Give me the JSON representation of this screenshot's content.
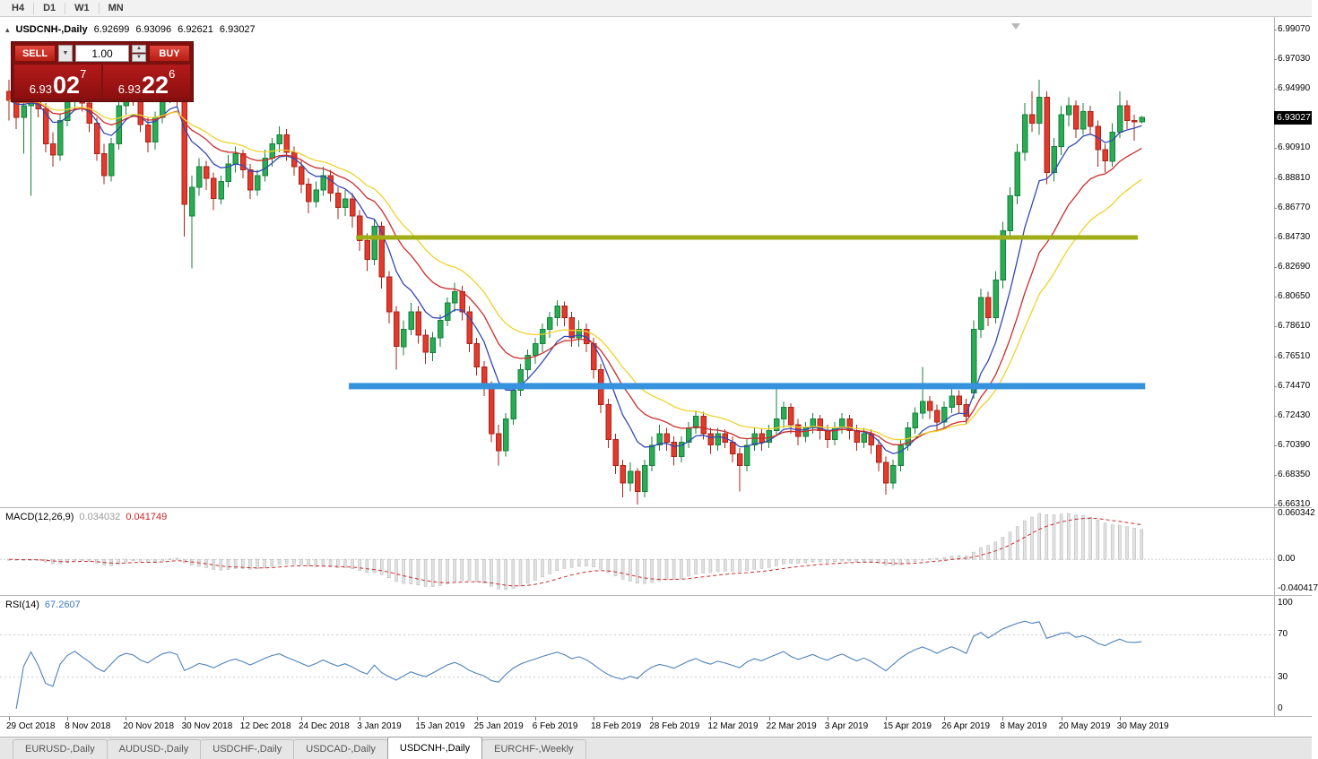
{
  "toolbar": {
    "timeframes": [
      "H4",
      "D1",
      "W1",
      "MN"
    ]
  },
  "trade_widget": {
    "sell_label": "SELL",
    "buy_label": "BUY",
    "volume": "1.00",
    "sell_price": {
      "base": "6.93",
      "big": "02",
      "sup": "7"
    },
    "buy_price": {
      "base": "6.93",
      "big": "22",
      "sup": "6"
    }
  },
  "chart_header": {
    "collapse_icon": "▴",
    "symbol": "USDCNH-,Daily",
    "open": "6.92699",
    "high": "6.93096",
    "low": "6.92621",
    "close": "6.93027"
  },
  "price_axis": {
    "ticks": [
      "6.99070",
      "6.97030",
      "6.94990",
      "6.90910",
      "6.88810",
      "6.86770",
      "6.84730",
      "6.82690",
      "6.80650",
      "6.78610",
      "6.76510",
      "6.74470",
      "6.72430",
      "6.70390",
      "6.68350",
      "6.66310"
    ],
    "current": "6.93027"
  },
  "macd_panel": {
    "label": "MACD(12,26,9)",
    "main_value": "0.034032",
    "signal_value": "0.041749",
    "axis_top": "0.060342",
    "axis_zero": "0.00",
    "axis_bottom": "-0.040417"
  },
  "rsi_panel": {
    "label": "RSI(14)",
    "value": "67.2607",
    "axis": [
      "100",
      "70",
      "30",
      "0"
    ]
  },
  "date_axis": [
    "29 Oct 2018",
    "8 Nov 2018",
    "20 Nov 2018",
    "30 Nov 2018",
    "12 Dec 2018",
    "24 Dec 2018",
    "3 Jan 2019",
    "15 Jan 2019",
    "25 Jan 2019",
    "6 Feb 2019",
    "18 Feb 2019",
    "28 Feb 2019",
    "12 Mar 2019",
    "22 Mar 2019",
    "3 Apr 2019",
    "15 Apr 2019",
    "26 Apr 2019",
    "8 May 2019",
    "20 May 2019",
    "30 May 2019"
  ],
  "tabs": {
    "items": [
      {
        "label": "EURUSD-,Daily",
        "active": false
      },
      {
        "label": "AUDUSD-,Daily",
        "active": false
      },
      {
        "label": "USDCHF-,Daily",
        "active": false
      },
      {
        "label": "USDCAD-,Daily",
        "active": false
      },
      {
        "label": "USDCNH-,Daily",
        "active": true
      },
      {
        "label": "EURCHF-,Weekly",
        "active": false
      }
    ]
  },
  "colors": {
    "up": "#2aac55",
    "up_border": "#16813c",
    "down": "#e23a2c",
    "down_border": "#aa2318",
    "ma_fast": "#3448b4",
    "ma_mid": "#cc2b2b",
    "ma_slow": "#f0d22a",
    "hline_olive": "#a0ad16",
    "hline_blue": "#3792de",
    "macd_hist": "#e2e2e2",
    "macd_hist_border": "#b0b0b0",
    "macd_signal": "#cc2b2b",
    "rsi_line": "#4c82bc",
    "price_tag_bg": "#000000"
  },
  "chart_data": {
    "type": "candlestick",
    "title": "USDCNH-,Daily",
    "x_label_step": 8,
    "price_range": [
      6.6631,
      6.9907
    ],
    "indicators": {
      "macd": {
        "fast": 12,
        "slow": 26,
        "signal": 9
      },
      "rsi": {
        "period": 14,
        "levels": [
          70,
          30
        ]
      }
    },
    "moving_averages": [
      {
        "name": "ma-line-fast",
        "type": "ema",
        "period": 8,
        "color_key": "ma_fast"
      },
      {
        "name": "ma-line-mid",
        "type": "ema",
        "period": 16,
        "color_key": "ma_mid"
      },
      {
        "name": "ma-line-slow",
        "type": "ema",
        "period": 24,
        "color_key": "ma_slow"
      }
    ],
    "hlines": [
      {
        "name": "resistance-line",
        "price": 6.8473,
        "from": 48,
        "to": 154,
        "color_key": "hline_olive",
        "thickness": 5
      },
      {
        "name": "support-line",
        "price": 6.7447,
        "from": 47,
        "to": 155,
        "color_key": "hline_blue",
        "thickness": 7
      }
    ],
    "candles": [
      [
        6.948,
        6.956,
        6.928,
        6.942
      ],
      [
        6.942,
        6.946,
        6.922,
        6.93
      ],
      [
        6.93,
        6.944,
        6.905,
        6.938
      ],
      [
        6.938,
        6.95,
        6.876,
        6.944
      ],
      [
        6.944,
        6.952,
        6.93,
        6.936
      ],
      [
        6.936,
        6.94,
        6.906,
        6.912
      ],
      [
        6.912,
        6.92,
        6.896,
        6.904
      ],
      [
        6.904,
        6.932,
        6.9,
        6.928
      ],
      [
        6.928,
        6.948,
        6.924,
        6.943
      ],
      [
        6.943,
        6.958,
        6.936,
        6.952
      ],
      [
        6.952,
        6.956,
        6.934,
        6.94
      ],
      [
        6.94,
        6.944,
        6.92,
        6.926
      ],
      [
        6.926,
        6.93,
        6.9,
        6.905
      ],
      [
        6.905,
        6.912,
        6.884,
        6.89
      ],
      [
        6.89,
        6.916,
        6.886,
        6.912
      ],
      [
        6.912,
        6.942,
        6.908,
        6.938
      ],
      [
        6.938,
        6.954,
        6.932,
        6.95
      ],
      [
        6.95,
        6.956,
        6.938,
        6.944
      ],
      [
        6.944,
        6.948,
        6.92,
        6.925
      ],
      [
        6.925,
        6.93,
        6.906,
        6.913
      ],
      [
        6.913,
        6.934,
        6.908,
        6.93
      ],
      [
        6.93,
        6.95,
        6.926,
        6.945
      ],
      [
        6.945,
        6.958,
        6.94,
        6.952
      ],
      [
        6.952,
        6.956,
        6.938,
        6.944
      ],
      [
        6.944,
        6.946,
        6.848,
        6.87
      ],
      [
        6.862,
        6.89,
        6.826,
        6.882
      ],
      [
        6.882,
        6.902,
        6.876,
        6.896
      ],
      [
        6.896,
        6.9,
        6.88,
        6.888
      ],
      [
        6.888,
        6.892,
        6.866,
        6.874
      ],
      [
        6.874,
        6.89,
        6.87,
        6.886
      ],
      [
        6.886,
        6.904,
        6.882,
        6.898
      ],
      [
        6.898,
        6.91,
        6.892,
        6.905
      ],
      [
        6.905,
        6.908,
        6.888,
        6.894
      ],
      [
        6.894,
        6.898,
        6.874,
        6.88
      ],
      [
        6.88,
        6.894,
        6.876,
        6.89
      ],
      [
        6.89,
        6.908,
        6.886,
        6.902
      ],
      [
        6.902,
        6.916,
        6.896,
        6.912
      ],
      [
        6.912,
        6.924,
        6.906,
        6.918
      ],
      [
        6.918,
        6.922,
        6.9,
        6.906
      ],
      [
        6.906,
        6.91,
        6.89,
        6.896
      ],
      [
        6.896,
        6.9,
        6.878,
        6.884
      ],
      [
        6.884,
        6.888,
        6.864,
        6.872
      ],
      [
        6.872,
        6.886,
        6.868,
        6.88
      ],
      [
        6.88,
        6.896,
        6.876,
        6.89
      ],
      [
        6.89,
        6.894,
        6.872,
        6.878
      ],
      [
        6.878,
        6.882,
        6.86,
        6.868
      ],
      [
        6.868,
        6.88,
        6.862,
        6.874
      ],
      [
        6.874,
        6.878,
        6.854,
        6.862
      ],
      [
        6.862,
        6.866,
        6.838,
        6.845
      ],
      [
        6.845,
        6.85,
        6.824,
        6.832
      ],
      [
        6.832,
        6.86,
        6.828,
        6.855
      ],
      [
        6.855,
        6.858,
        6.812,
        6.82
      ],
      [
        6.82,
        6.824,
        6.788,
        6.796
      ],
      [
        6.796,
        6.8,
        6.756,
        6.772
      ],
      [
        6.772,
        6.79,
        6.766,
        6.784
      ],
      [
        6.784,
        6.802,
        6.78,
        6.796
      ],
      [
        6.796,
        6.8,
        6.774,
        6.78
      ],
      [
        6.78,
        6.784,
        6.76,
        6.768
      ],
      [
        6.768,
        6.782,
        6.762,
        6.778
      ],
      [
        6.778,
        6.794,
        6.772,
        6.79
      ],
      [
        6.79,
        6.806,
        6.786,
        6.802
      ],
      [
        6.802,
        6.816,
        6.796,
        6.81
      ],
      [
        6.81,
        6.814,
        6.79,
        6.796
      ],
      [
        6.796,
        6.8,
        6.768,
        6.774
      ],
      [
        6.774,
        6.778,
        6.752,
        6.758
      ],
      [
        6.758,
        6.762,
        6.738,
        6.744
      ],
      [
        6.744,
        6.748,
        6.706,
        6.712
      ],
      [
        6.712,
        6.718,
        6.69,
        6.7
      ],
      [
        6.7,
        6.726,
        6.696,
        6.722
      ],
      [
        6.722,
        6.746,
        6.718,
        6.742
      ],
      [
        6.742,
        6.76,
        6.738,
        6.756
      ],
      [
        6.756,
        6.77,
        6.75,
        6.766
      ],
      [
        6.766,
        6.778,
        6.76,
        6.774
      ],
      [
        6.774,
        6.788,
        6.768,
        6.784
      ],
      [
        6.784,
        6.796,
        6.778,
        6.792
      ],
      [
        6.792,
        6.804,
        6.786,
        6.8
      ],
      [
        6.8,
        6.803,
        6.786,
        6.792
      ],
      [
        6.792,
        6.796,
        6.772,
        6.778
      ],
      [
        6.778,
        6.79,
        6.772,
        6.784
      ],
      [
        6.784,
        6.788,
        6.768,
        6.774
      ],
      [
        6.774,
        6.778,
        6.75,
        6.756
      ],
      [
        6.756,
        6.76,
        6.726,
        6.732
      ],
      [
        6.732,
        6.736,
        6.702,
        6.708
      ],
      [
        6.708,
        6.712,
        6.684,
        6.69
      ],
      [
        6.69,
        6.694,
        6.668,
        6.678
      ],
      [
        6.678,
        6.692,
        6.672,
        6.686
      ],
      [
        6.686,
        6.688,
        6.663,
        6.672
      ],
      [
        6.672,
        6.694,
        6.668,
        6.69
      ],
      [
        6.69,
        6.71,
        6.686,
        6.704
      ],
      [
        6.704,
        6.718,
        6.7,
        6.712
      ],
      [
        6.712,
        6.716,
        6.7,
        6.706
      ],
      [
        6.706,
        6.71,
        6.69,
        6.696
      ],
      [
        6.696,
        6.71,
        6.692,
        6.706
      ],
      [
        6.706,
        6.72,
        6.702,
        6.716
      ],
      [
        6.716,
        6.728,
        6.712,
        6.724
      ],
      [
        6.724,
        6.727,
        6.708,
        6.712
      ],
      [
        6.712,
        6.716,
        6.698,
        6.704
      ],
      [
        6.704,
        6.716,
        6.7,
        6.712
      ],
      [
        6.712,
        6.715,
        6.702,
        6.706
      ],
      [
        6.706,
        6.71,
        6.692,
        6.698
      ],
      [
        6.698,
        6.702,
        6.672,
        6.69
      ],
      [
        6.69,
        6.708,
        6.686,
        6.704
      ],
      [
        6.704,
        6.716,
        6.7,
        6.712
      ],
      [
        6.712,
        6.715,
        6.7,
        6.706
      ],
      [
        6.706,
        6.718,
        6.702,
        6.714
      ],
      [
        6.714,
        6.744,
        6.71,
        6.722
      ],
      [
        6.722,
        6.734,
        6.716,
        6.73
      ],
      [
        6.73,
        6.733,
        6.712,
        6.718
      ],
      [
        6.718,
        6.722,
        6.704,
        6.71
      ],
      [
        6.71,
        6.72,
        6.706,
        6.716
      ],
      [
        6.716,
        6.726,
        6.712,
        6.722
      ],
      [
        6.722,
        6.725,
        6.708,
        6.714
      ],
      [
        6.714,
        6.718,
        6.702,
        6.708
      ],
      [
        6.708,
        6.72,
        6.704,
        6.716
      ],
      [
        6.716,
        6.726,
        6.712,
        6.722
      ],
      [
        6.722,
        6.725,
        6.708,
        6.714
      ],
      [
        6.714,
        6.718,
        6.7,
        6.706
      ],
      [
        6.706,
        6.716,
        6.702,
        6.712
      ],
      [
        6.712,
        6.715,
        6.698,
        6.704
      ],
      [
        6.704,
        6.708,
        6.686,
        6.692
      ],
      [
        6.692,
        6.696,
        6.67,
        6.678
      ],
      [
        6.678,
        6.694,
        6.674,
        6.69
      ],
      [
        6.69,
        6.708,
        6.686,
        6.704
      ],
      [
        6.704,
        6.72,
        6.7,
        6.716
      ],
      [
        6.716,
        6.73,
        6.712,
        6.726
      ],
      [
        6.726,
        6.758,
        6.722,
        6.734
      ],
      [
        6.734,
        6.738,
        6.722,
        6.728
      ],
      [
        6.728,
        6.732,
        6.714,
        6.72
      ],
      [
        6.72,
        6.734,
        6.716,
        6.73
      ],
      [
        6.73,
        6.744,
        6.726,
        6.738
      ],
      [
        6.738,
        6.742,
        6.726,
        6.732
      ],
      [
        6.732,
        6.736,
        6.718,
        6.724
      ],
      [
        6.74,
        6.79,
        6.736,
        6.784
      ],
      [
        6.784,
        6.812,
        6.778,
        6.806
      ],
      [
        6.806,
        6.81,
        6.786,
        6.792
      ],
      [
        6.792,
        6.824,
        6.788,
        6.818
      ],
      [
        6.818,
        6.858,
        6.812,
        6.852
      ],
      [
        6.852,
        6.882,
        6.846,
        6.876
      ],
      [
        6.876,
        6.912,
        6.87,
        6.906
      ],
      [
        6.906,
        6.94,
        6.9,
        6.932
      ],
      [
        6.932,
        6.948,
        6.92,
        6.926
      ],
      [
        6.926,
        6.956,
        6.918,
        6.944
      ],
      [
        6.944,
        6.948,
        6.884,
        6.892
      ],
      [
        6.892,
        6.916,
        6.886,
        6.91
      ],
      [
        6.91,
        6.938,
        6.904,
        6.932
      ],
      [
        6.932,
        6.944,
        6.924,
        6.938
      ],
      [
        6.938,
        6.942,
        6.916,
        6.922
      ],
      [
        6.922,
        6.94,
        6.918,
        6.934
      ],
      [
        6.934,
        6.938,
        6.918,
        6.924
      ],
      [
        6.924,
        6.928,
        6.896,
        6.908
      ],
      [
        6.908,
        6.912,
        6.892,
        6.9
      ],
      [
        6.9,
        6.926,
        6.896,
        6.92
      ],
      [
        6.92,
        6.948,
        6.916,
        6.938
      ],
      [
        6.938,
        6.942,
        6.922,
        6.928
      ],
      [
        6.928,
        6.932,
        6.914,
        6.927
      ],
      [
        6.927,
        6.93096,
        6.92621,
        6.93027
      ]
    ]
  }
}
